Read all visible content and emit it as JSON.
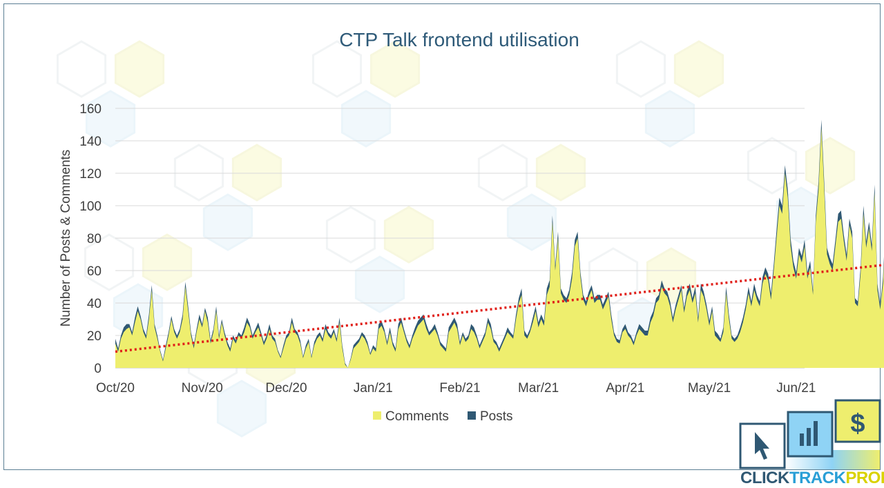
{
  "chart_data": {
    "type": "area",
    "title": "CTP Talk frontend utilisation",
    "xlabel": "",
    "ylabel": "Number of Posts & Comments",
    "ylim": [
      0,
      160
    ],
    "yticks": [
      0,
      20,
      40,
      60,
      80,
      100,
      120,
      140,
      160
    ],
    "x_start": "2020-10-01",
    "x_end": "2021-06-04",
    "x_ticks": [
      "Oct/20",
      "Nov/20",
      "Dec/20",
      "Jan/21",
      "Feb/21",
      "Mar/21",
      "Apr/21",
      "May/21",
      "Jun/21"
    ],
    "x_tick_dates": [
      "2020-10-01",
      "2020-11-01",
      "2020-12-01",
      "2021-01-01",
      "2021-02-01",
      "2021-03-01",
      "2021-04-01",
      "2021-05-01",
      "2021-06-01"
    ],
    "grid": "horizontal",
    "legend_position": "bottom",
    "stacked": true,
    "series": [
      {
        "name": "Comments",
        "color": "#eeee6e",
        "values": [
          15,
          10,
          18,
          22,
          24,
          25,
          20,
          28,
          35,
          30,
          22,
          18,
          30,
          48,
          25,
          18,
          10,
          4,
          12,
          20,
          30,
          22,
          18,
          22,
          30,
          50,
          35,
          20,
          12,
          22,
          30,
          25,
          35,
          28,
          15,
          22,
          35,
          18,
          28,
          20,
          14,
          10,
          18,
          15,
          20,
          18,
          22,
          28,
          25,
          18,
          22,
          25,
          20,
          14,
          18,
          24,
          18,
          16,
          10,
          6,
          12,
          18,
          20,
          28,
          22,
          20,
          15,
          6,
          12,
          16,
          6,
          14,
          18,
          20,
          16,
          24,
          20,
          18,
          22,
          16,
          28,
          12,
          2,
          0,
          5,
          12,
          14,
          16,
          20,
          18,
          14,
          8,
          12,
          10,
          24,
          26,
          22,
          14,
          22,
          14,
          10,
          24,
          28,
          22,
          16,
          12,
          18,
          22,
          26,
          28,
          30,
          24,
          20,
          22,
          24,
          20,
          14,
          12,
          10,
          22,
          25,
          28,
          24,
          14,
          20,
          16,
          18,
          24,
          22,
          18,
          12,
          16,
          20,
          28,
          24,
          16,
          14,
          10,
          14,
          18,
          22,
          20,
          18,
          30,
          40,
          45,
          20,
          18,
          22,
          28,
          35,
          25,
          30,
          26,
          45,
          50,
          90,
          60,
          80,
          46,
          42,
          40,
          45,
          55,
          75,
          80,
          56,
          42,
          38,
          44,
          48,
          40,
          42,
          42,
          36,
          40,
          44,
          30,
          20,
          16,
          15,
          22,
          24,
          20,
          18,
          14,
          20,
          24,
          22,
          20,
          20,
          28,
          32,
          40,
          42,
          50,
          46,
          44,
          38,
          28,
          36,
          42,
          48,
          34,
          44,
          48,
          40,
          46,
          28,
          48,
          44,
          36,
          26,
          35,
          20,
          18,
          16,
          22,
          46,
          30,
          18,
          16,
          18,
          22,
          28,
          36,
          46,
          38,
          48,
          42,
          38,
          52,
          58,
          54,
          42,
          60,
          80,
          100,
          95,
          120,
          105,
          75,
          62,
          55,
          70,
          65,
          75,
          55,
          62,
          45,
          90,
          110,
          148,
          110,
          70,
          64,
          60,
          75,
          90,
          92,
          78,
          66,
          88,
          80,
          40,
          38,
          58,
          95,
          74,
          86,
          72,
          108,
          48,
          36,
          52,
          88,
          64,
          50,
          42,
          100,
          44,
          38,
          55
        ]
      },
      {
        "name": "Posts",
        "color": "#2f5873",
        "values": [
          3,
          2,
          2,
          3,
          3,
          2,
          2,
          3,
          3,
          2,
          2,
          2,
          3,
          3,
          2,
          2,
          1,
          1,
          2,
          2,
          2,
          2,
          2,
          2,
          3,
          3,
          3,
          2,
          2,
          2,
          3,
          2,
          2,
          3,
          2,
          2,
          3,
          2,
          2,
          2,
          2,
          2,
          2,
          2,
          2,
          2,
          3,
          3,
          2,
          2,
          2,
          3,
          2,
          2,
          2,
          3,
          2,
          2,
          1,
          1,
          2,
          2,
          2,
          3,
          2,
          2,
          2,
          1,
          2,
          2,
          1,
          2,
          2,
          2,
          2,
          3,
          2,
          2,
          2,
          2,
          3,
          2,
          1,
          0,
          1,
          2,
          2,
          2,
          2,
          2,
          2,
          1,
          2,
          2,
          3,
          3,
          2,
          2,
          3,
          2,
          2,
          3,
          3,
          2,
          2,
          2,
          2,
          3,
          3,
          3,
          3,
          3,
          2,
          2,
          3,
          2,
          2,
          2,
          2,
          3,
          3,
          3,
          3,
          2,
          2,
          2,
          2,
          3,
          3,
          2,
          2,
          2,
          2,
          3,
          3,
          2,
          2,
          2,
          2,
          2,
          3,
          2,
          2,
          3,
          3,
          4,
          3,
          2,
          2,
          3,
          3,
          3,
          3,
          3,
          4,
          4,
          4,
          3,
          4,
          3,
          3,
          3,
          3,
          4,
          4,
          4,
          3,
          3,
          3,
          3,
          3,
          3,
          3,
          3,
          3,
          3,
          3,
          3,
          2,
          2,
          2,
          2,
          3,
          2,
          2,
          2,
          2,
          3,
          3,
          3,
          3,
          3,
          3,
          3,
          3,
          4,
          3,
          3,
          3,
          3,
          3,
          3,
          3,
          3,
          3,
          4,
          3,
          4,
          3,
          4,
          3,
          3,
          3,
          3,
          3,
          3,
          2,
          3,
          4,
          3,
          2,
          2,
          2,
          3,
          3,
          3,
          4,
          3,
          4,
          3,
          3,
          4,
          4,
          4,
          4,
          4,
          5,
          5,
          5,
          5,
          5,
          5,
          4,
          4,
          4,
          4,
          4,
          4,
          4,
          3,
          4,
          5,
          5,
          5,
          4,
          4,
          4,
          4,
          5,
          5,
          4,
          4,
          4,
          4,
          3,
          3,
          4,
          5,
          4,
          4,
          4,
          5,
          4,
          3,
          4,
          4,
          4,
          3,
          3,
          5,
          3,
          3,
          3
        ]
      }
    ],
    "trendline": {
      "type": "linear",
      "style": "dotted",
      "color": "#e0201a",
      "start_value": 10,
      "end_value": 65
    }
  },
  "logo": {
    "word_1": "CLICK",
    "word_2": "TRACK",
    "word_3": "PROFIT",
    "dollar_symbol": "$",
    "colors": {
      "click": "#2f5873",
      "track": "#2a9fd6",
      "profit": "#d9d200"
    }
  }
}
